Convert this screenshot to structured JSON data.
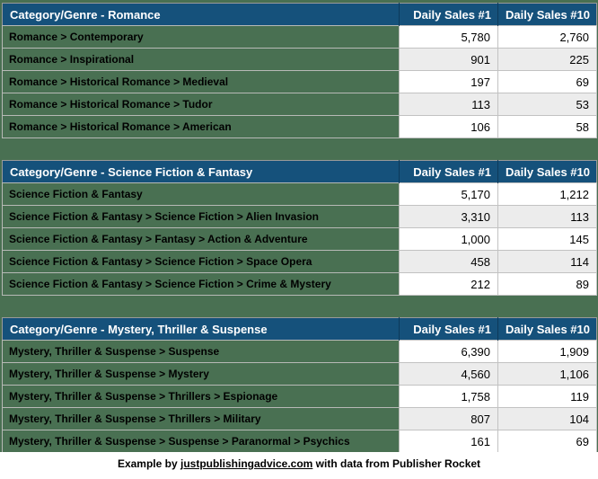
{
  "colors": {
    "header_bg": "#15517B",
    "header_text": "#FFFFFF",
    "category_bg": "#497052",
    "row_bg": "#FFFFFF",
    "row_alt_bg": "#ECECEC",
    "grid_border": "#BDBDBD",
    "canvas_bg": "#497052"
  },
  "columns": [
    "Daily Sales #1",
    "Daily Sales #10"
  ],
  "tables": [
    {
      "title": "Category/Genre - Romance",
      "rows": [
        {
          "category": "Romance > Contemporary",
          "sales_rank1": "5,780",
          "sales_rank10": "2,760"
        },
        {
          "category": "Romance > Inspirational",
          "sales_rank1": "901",
          "sales_rank10": "225"
        },
        {
          "category": "Romance > Historical Romance > Medieval",
          "sales_rank1": "197",
          "sales_rank10": "69"
        },
        {
          "category": "Romance > Historical Romance > Tudor",
          "sales_rank1": "113",
          "sales_rank10": "53"
        },
        {
          "category": "Romance > Historical Romance > American",
          "sales_rank1": "106",
          "sales_rank10": "58"
        }
      ]
    },
    {
      "title": "Category/Genre - Science Fiction & Fantasy",
      "rows": [
        {
          "category": "Science Fiction & Fantasy",
          "sales_rank1": "5,170",
          "sales_rank10": "1,212"
        },
        {
          "category": "Science Fiction & Fantasy > Science Fiction > Alien Invasion",
          "sales_rank1": "3,310",
          "sales_rank10": "113"
        },
        {
          "category": "Science Fiction & Fantasy > Fantasy > Action & Adventure",
          "sales_rank1": "1,000",
          "sales_rank10": "145"
        },
        {
          "category": "Science Fiction & Fantasy > Science Fiction > Space Opera",
          "sales_rank1": "458",
          "sales_rank10": "114"
        },
        {
          "category": "Science Fiction & Fantasy > Science Fiction > Crime & Mystery",
          "sales_rank1": "212",
          "sales_rank10": "89"
        }
      ]
    },
    {
      "title": "Category/Genre - Mystery, Thriller & Suspense",
      "rows": [
        {
          "category": "Mystery, Thriller & Suspense > Suspense",
          "sales_rank1": "6,390",
          "sales_rank10": "1,909"
        },
        {
          "category": "Mystery, Thriller & Suspense > Mystery",
          "sales_rank1": "4,560",
          "sales_rank10": "1,106"
        },
        {
          "category": "Mystery, Thriller & Suspense > Thrillers > Espionage",
          "sales_rank1": "1,758",
          "sales_rank10": "119"
        },
        {
          "category": "Mystery, Thriller & Suspense > Thrillers > Military",
          "sales_rank1": "807",
          "sales_rank10": "104"
        },
        {
          "category": "Mystery, Thriller & Suspense > Suspense > Paranormal > Psychics",
          "sales_rank1": "161",
          "sales_rank10": "69"
        }
      ]
    }
  ],
  "footer": {
    "prefix": "Example by ",
    "link_text": "justpublishingadvice.com",
    "suffix": " with data from Publisher Rocket"
  },
  "chart_data": [
    {
      "type": "table",
      "title": "Category/Genre - Romance",
      "columns": [
        "Category/Genre",
        "Daily Sales #1",
        "Daily Sales #10"
      ],
      "rows": [
        [
          "Romance > Contemporary",
          5780,
          2760
        ],
        [
          "Romance > Inspirational",
          901,
          225
        ],
        [
          "Romance > Historical Romance > Medieval",
          197,
          69
        ],
        [
          "Romance > Historical Romance > Tudor",
          113,
          53
        ],
        [
          "Romance > Historical Romance > American",
          106,
          58
        ]
      ]
    },
    {
      "type": "table",
      "title": "Category/Genre - Science Fiction & Fantasy",
      "columns": [
        "Category/Genre",
        "Daily Sales #1",
        "Daily Sales #10"
      ],
      "rows": [
        [
          "Science Fiction & Fantasy",
          5170,
          1212
        ],
        [
          "Science Fiction & Fantasy > Science Fiction > Alien Invasion",
          3310,
          113
        ],
        [
          "Science Fiction & Fantasy > Fantasy > Action & Adventure",
          1000,
          145
        ],
        [
          "Science Fiction & Fantasy > Science Fiction > Space Opera",
          458,
          114
        ],
        [
          "Science Fiction & Fantasy > Science Fiction > Crime & Mystery",
          212,
          89
        ]
      ]
    },
    {
      "type": "table",
      "title": "Category/Genre - Mystery, Thriller & Suspense",
      "columns": [
        "Category/Genre",
        "Daily Sales #1",
        "Daily Sales #10"
      ],
      "rows": [
        [
          "Mystery, Thriller & Suspense > Suspense",
          6390,
          1909
        ],
        [
          "Mystery, Thriller & Suspense > Mystery",
          4560,
          1106
        ],
        [
          "Mystery, Thriller & Suspense > Thrillers > Espionage",
          1758,
          119
        ],
        [
          "Mystery, Thriller & Suspense > Thrillers > Military",
          807,
          104
        ],
        [
          "Mystery, Thriller & Suspense > Suspense > Paranormal > Psychics",
          161,
          69
        ]
      ]
    }
  ]
}
